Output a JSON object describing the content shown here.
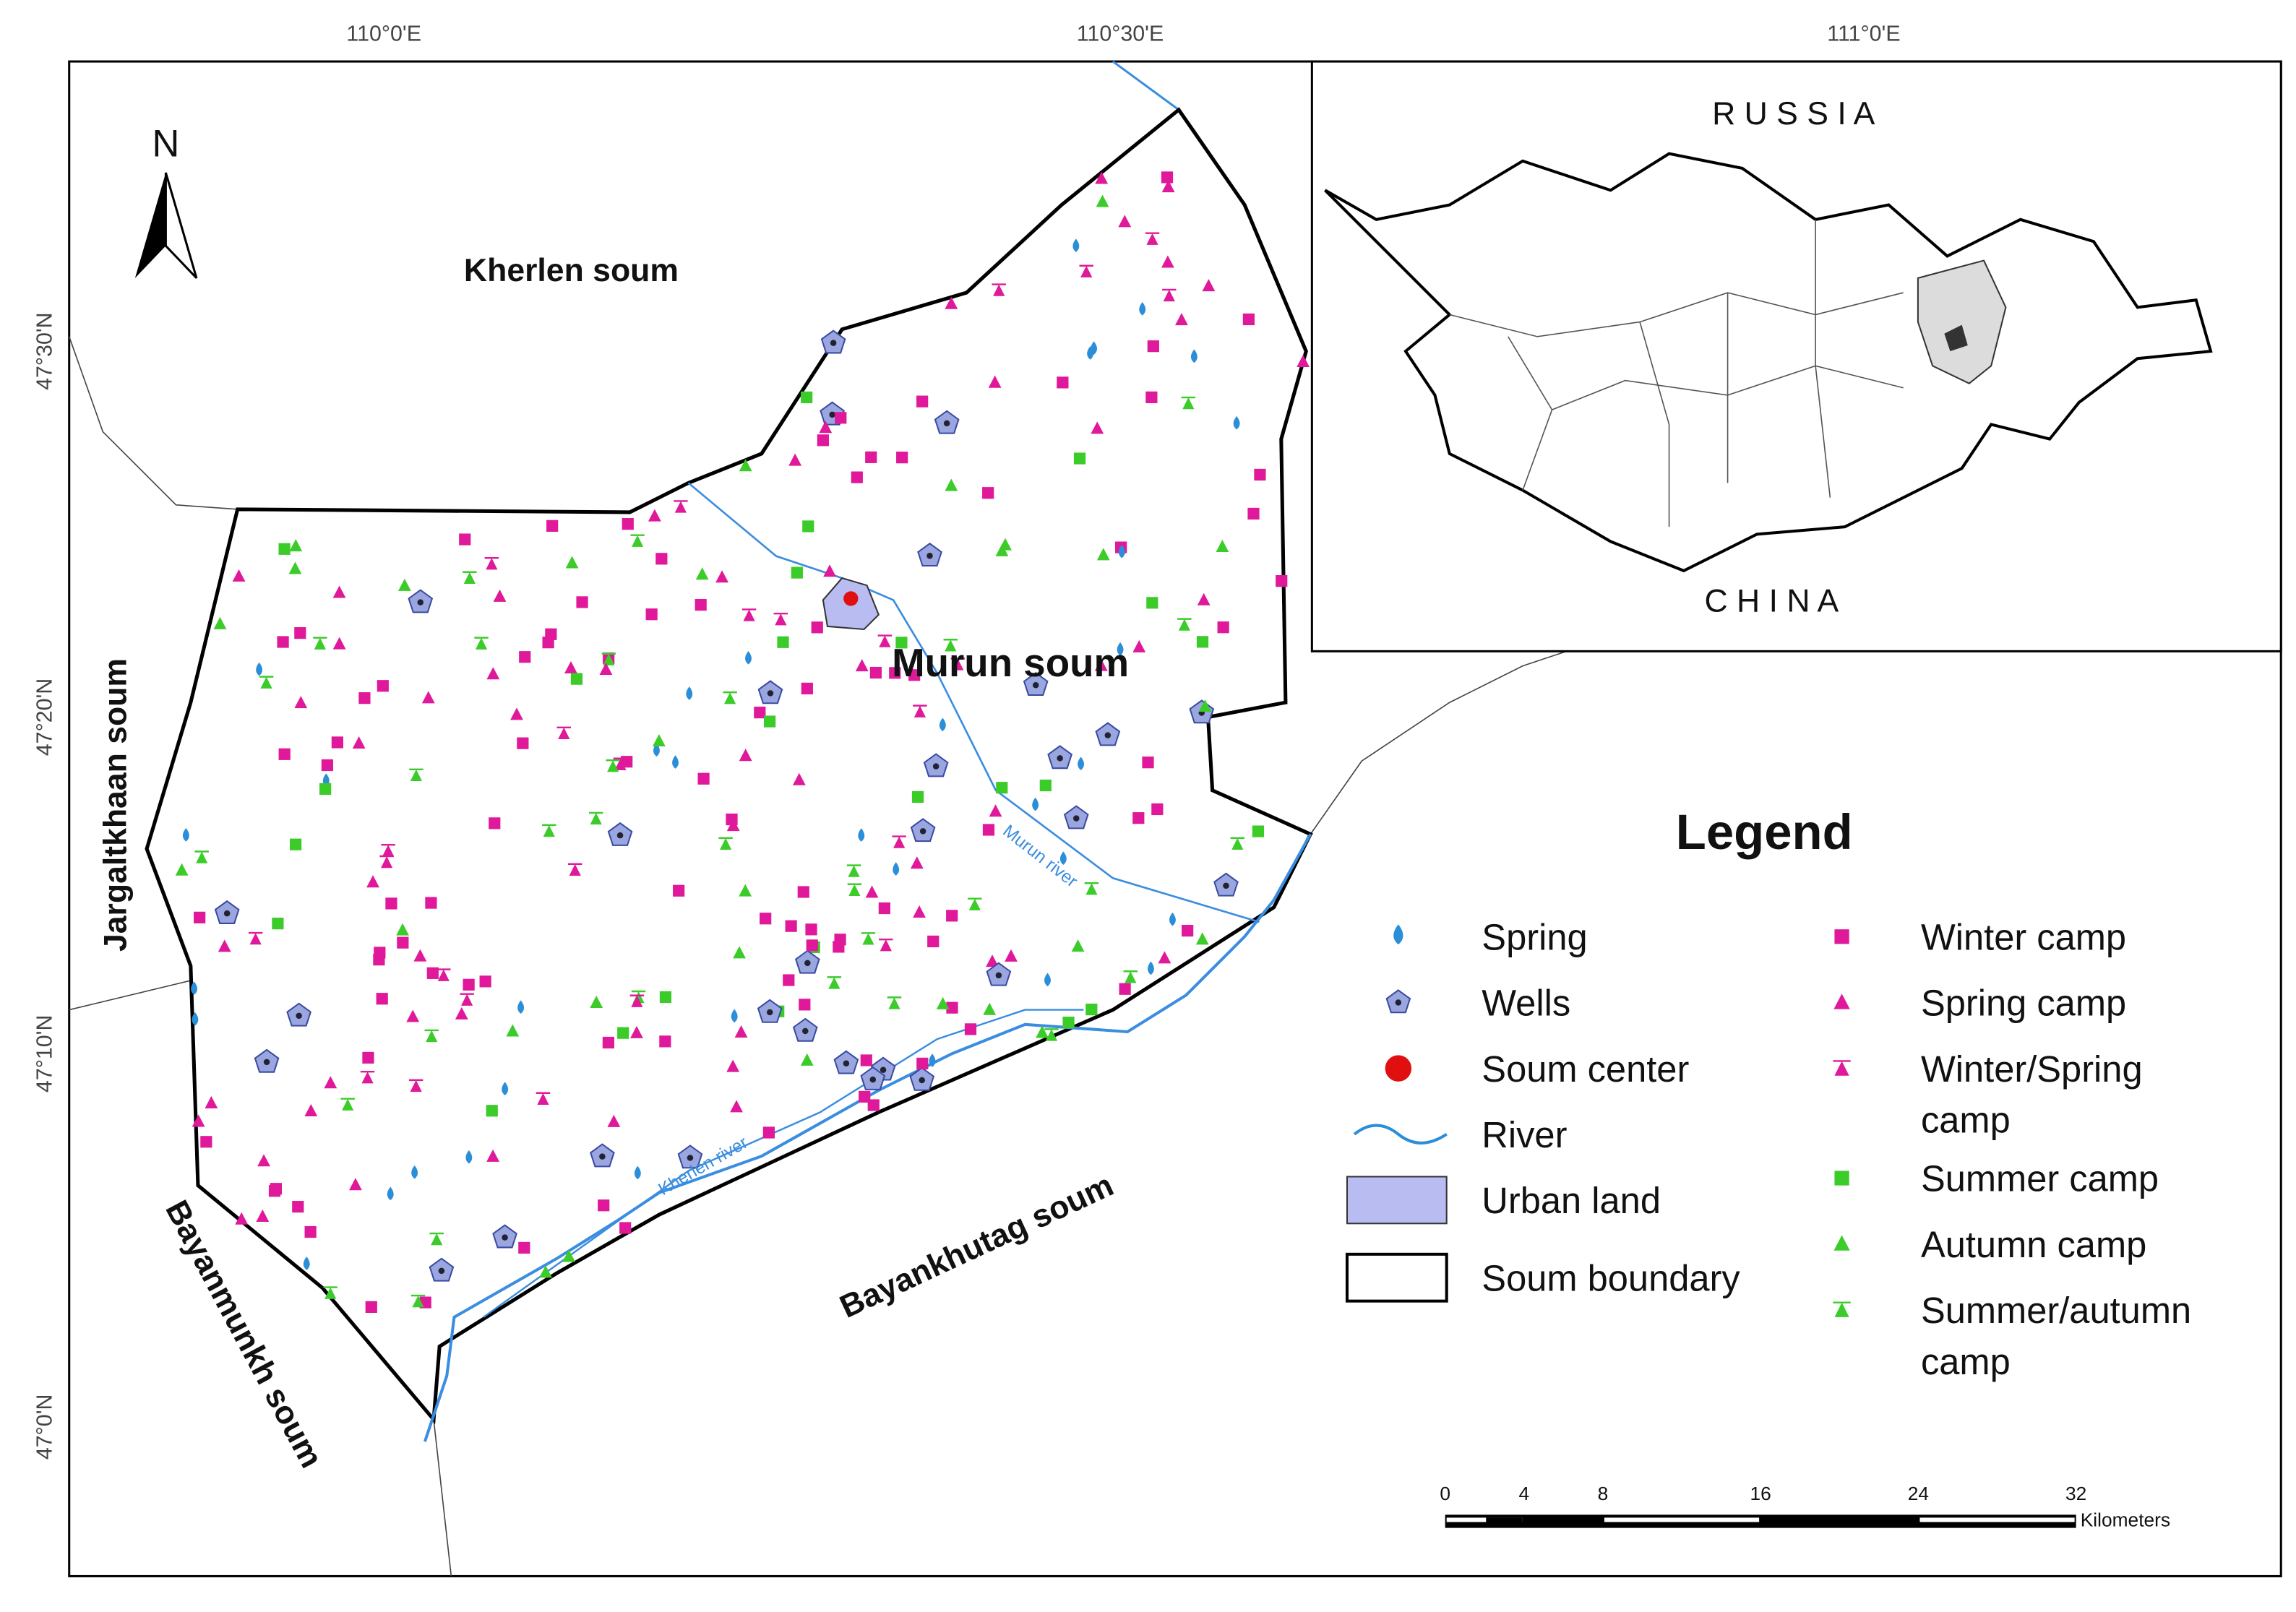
{
  "graticule": {
    "longitudes": [
      "110°0'E",
      "110°30'E",
      "111°0'E"
    ],
    "latitudes": [
      "47°30'N",
      "47°20'N",
      "47°10'N",
      "47°0'N"
    ]
  },
  "north_arrow": "N",
  "places": {
    "kherlen": "Kherlen soum",
    "murun": "Murun soum",
    "jargaltkhaan": "Jargaltkhaan soum",
    "bayanmunkh": "Bayanmunkh soum",
    "bayankhutag": "Bayankhutag soum",
    "murun_river": "Murun river",
    "kherlen_river": "Kherlen river"
  },
  "inset": {
    "north": "R U S S I A",
    "south": "C H I N A"
  },
  "legend": {
    "title": "Legend",
    "left": [
      [
        "Spring"
      ],
      [
        "Wells"
      ],
      [
        "Soum center"
      ],
      [
        "River"
      ],
      [
        "Urban land"
      ],
      [
        "Soum boundary"
      ]
    ],
    "right": [
      [
        "Winter camp"
      ],
      [
        "Spring camp"
      ],
      [
        "Winter/Spring",
        "camp"
      ],
      [
        "Summer camp"
      ],
      [
        "Autumn camp"
      ],
      [
        "Summer/autumn",
        "camp"
      ]
    ]
  },
  "scale_bar": {
    "ticks": [
      0,
      4,
      8,
      16,
      24,
      32
    ],
    "unit": "Kilometers"
  }
}
